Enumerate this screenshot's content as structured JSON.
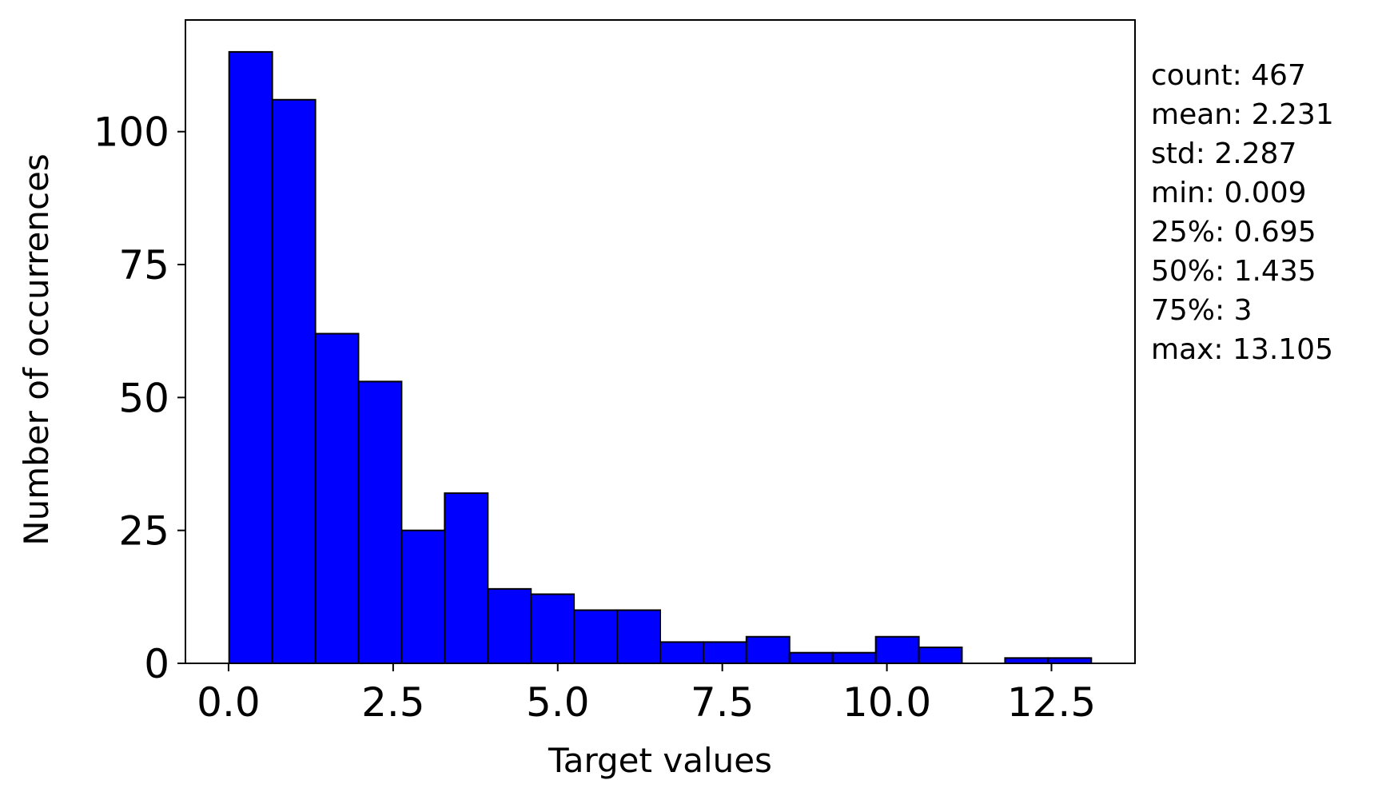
{
  "chart_data": {
    "type": "bar",
    "title": "",
    "xlabel": "Target values",
    "ylabel": "Number of occurrences",
    "xlim": [
      -0.655,
      13.769
    ],
    "ylim": [
      0,
      121
    ],
    "grid": false,
    "bar_color": "#0000ff",
    "edge_color": "#000000",
    "bin_edges": [
      0.009,
      0.664,
      1.319,
      1.973,
      2.628,
      3.283,
      3.938,
      4.593,
      5.247,
      5.902,
      6.557,
      7.212,
      7.866,
      8.521,
      9.176,
      9.831,
      10.486,
      11.14,
      11.795,
      12.45,
      13.105
    ],
    "values": [
      115,
      106,
      62,
      53,
      25,
      32,
      14,
      13,
      10,
      10,
      4,
      4,
      5,
      2,
      2,
      5,
      3,
      0,
      1,
      1
    ],
    "x_ticks": [
      {
        "value": 0.0,
        "label": "0.0"
      },
      {
        "value": 2.5,
        "label": "2.5"
      },
      {
        "value": 5.0,
        "label": "5.0"
      },
      {
        "value": 7.5,
        "label": "7.5"
      },
      {
        "value": 10.0,
        "label": "10.0"
      },
      {
        "value": 12.5,
        "label": "12.5"
      }
    ],
    "y_ticks": [
      {
        "value": 0,
        "label": "0"
      },
      {
        "value": 25,
        "label": "25"
      },
      {
        "value": 50,
        "label": "50"
      },
      {
        "value": 75,
        "label": "75"
      },
      {
        "value": 100,
        "label": "100"
      }
    ],
    "annotations": [
      "count: 467",
      "mean: 2.231",
      "std: 2.287",
      "min: 0.009",
      "25%: 0.695",
      "50%: 1.435",
      "75%: 3",
      "max: 13.105"
    ]
  }
}
